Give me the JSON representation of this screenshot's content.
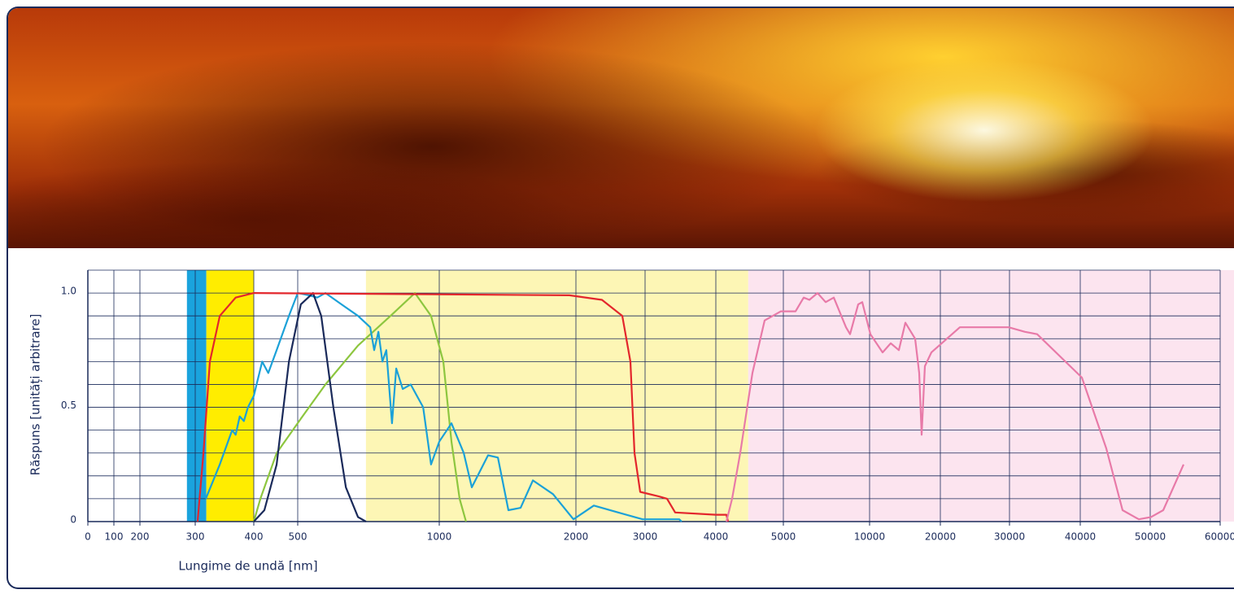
{
  "chart_data": {
    "type": "line",
    "xlabel": "Lungime de undă [nm]",
    "ylabel": "Răspuns [unități arbitrare]",
    "xlim": [
      0,
      60000
    ],
    "xticks": [
      0,
      100,
      200,
      300,
      400,
      500,
      1000,
      2000,
      3000,
      4000,
      5000,
      10000,
      20000,
      30000,
      40000,
      50000,
      60000
    ],
    "ylim": [
      0,
      1.1
    ],
    "yticks": [
      0,
      0.5,
      {
        "value": 1,
        "label": "1.0"
      }
    ],
    "y_gridlines": [
      0.1,
      0.2,
      0.3,
      0.4,
      0.5,
      0.6,
      0.7,
      0.8,
      0.9,
      1,
      1.1
    ],
    "grid": true,
    "bands": [
      {
        "from": 285,
        "to": 319,
        "color": "#1aa3dd"
      },
      {
        "from": 319,
        "to": 400,
        "color": "#ffed00"
      },
      {
        "from": 741,
        "to": 4480,
        "color": "#fdf6b5"
      },
      {
        "from": 4480,
        "to": 60000,
        "color": "#fce4ef"
      }
    ],
    "series": [
      {
        "color": "#8dc63f",
        "x": [
          400,
          415,
          452,
          511,
          598,
          713,
          828,
          914,
          971,
          1030,
          1089,
          1149,
          1196
        ],
        "values": [
          0,
          0.1,
          0.3,
          0.45,
          0.6,
          0.77,
          0.9,
          1.0,
          0.9,
          0.7,
          0.35,
          0.1,
          0
        ]
      },
      {
        "color": "#1ba1d8",
        "x": [
          318,
          342,
          363,
          369,
          376,
          383,
          390,
          400,
          419,
          433,
          452,
          480,
          500,
          540,
          569,
          598,
          655,
          713,
          756,
          770,
          785,
          799,
          813,
          833,
          848,
          871,
          899,
          943,
          971,
          1000,
          1089,
          1179,
          1238,
          1357,
          1429,
          1506,
          1595,
          1685,
          1833,
          1982,
          2259,
          2612,
          2965,
          3483,
          3517
        ],
        "values": [
          0.1,
          0.25,
          0.4,
          0.38,
          0.46,
          0.44,
          0.5,
          0.55,
          0.7,
          0.65,
          0.75,
          0.9,
          1.0,
          0.99,
          0.98,
          1.0,
          0.95,
          0.9,
          0.85,
          0.75,
          0.83,
          0.7,
          0.75,
          0.43,
          0.67,
          0.58,
          0.6,
          0.5,
          0.25,
          0.35,
          0.43,
          0.3,
          0.15,
          0.29,
          0.28,
          0.05,
          0.06,
          0.18,
          0.12,
          0.01,
          0.07,
          0.04,
          0.01,
          0.01,
          0
        ]
      },
      {
        "color": "#1a2a5a",
        "x": [
          400,
          424,
          452,
          480,
          511,
          554,
          583,
          626,
          670,
          713,
          741
        ],
        "values": [
          0,
          0.05,
          0.25,
          0.7,
          0.95,
          1.0,
          0.9,
          0.5,
          0.15,
          0.02,
          0
        ]
      },
      {
        "color": "#e3262c",
        "x": [
          304,
          314,
          325,
          342,
          369,
          400,
          1952,
          2376,
          2671,
          2788,
          2847,
          2929,
          3195,
          3310,
          3425,
          4000,
          4157,
          4181
        ],
        "values": [
          0,
          0.3,
          0.7,
          0.9,
          0.98,
          1.0,
          0.99,
          0.97,
          0.9,
          0.7,
          0.3,
          0.13,
          0.11,
          0.1,
          0.04,
          0.03,
          0.03,
          0
        ]
      },
      {
        "color": "#e87aa8",
        "x": [
          4157,
          4241,
          4361,
          4542,
          4723,
          4964,
          5708,
          6179,
          6509,
          6981,
          7453,
          7925,
          8632,
          8868,
          9340,
          9575,
          10115,
          11839,
          12988,
          14137,
          15057,
          16435,
          17009,
          17354,
          17813,
          18732,
          22824,
          29882,
          32184,
          33908,
          40233,
          43721,
          46047,
          48372,
          50116,
          51860,
          54767
        ],
        "values": [
          0,
          0.1,
          0.3,
          0.65,
          0.88,
          0.92,
          0.92,
          0.98,
          0.97,
          1.0,
          0.96,
          0.98,
          0.85,
          0.82,
          0.95,
          0.96,
          0.82,
          0.74,
          0.78,
          0.75,
          0.87,
          0.8,
          0.65,
          0.38,
          0.68,
          0.74,
          0.85,
          0.85,
          0.83,
          0.82,
          0.63,
          0.32,
          0.05,
          0.01,
          0.02,
          0.05,
          0.25
        ]
      }
    ]
  }
}
